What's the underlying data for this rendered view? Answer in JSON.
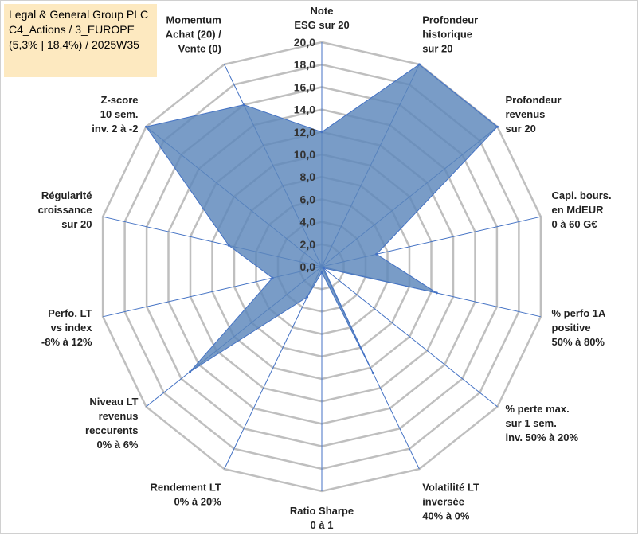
{
  "title_box": {
    "line1": "Legal & General Group PLC",
    "line2": "C4_Actions / 3_EUROPE",
    "line3": "(5,3% | 18,4%) / 2025W35",
    "background": "#fde9c0"
  },
  "chart_data": {
    "type": "radar",
    "rlim": [
      0,
      20
    ],
    "r_ticks": [
      "0,0",
      "2,0",
      "4,0",
      "6,0",
      "8,0",
      "10,0",
      "12,0",
      "14,0",
      "16,0",
      "18,0",
      "20,0"
    ],
    "grid": true,
    "fill_color": "#5b86bb",
    "line_color": "#4472c4",
    "grid_color": "#bfbfbf",
    "axes": [
      {
        "label": [
          "Note",
          "ESG sur 20"
        ],
        "value": 12.0
      },
      {
        "label": [
          "Profondeur",
          "historique",
          "sur 20"
        ],
        "value": 20.0
      },
      {
        "label": [
          "Profondeur",
          "revenus",
          "sur 20"
        ],
        "value": 20.0
      },
      {
        "label": [
          "Capi. bours.",
          "en MdEUR",
          "0 à 60 G€"
        ],
        "value": 5.0
      },
      {
        "label": [
          "% perfo 1A",
          "positive",
          "50% à 80%"
        ],
        "value": 10.5
      },
      {
        "label": [
          "% perte max.",
          "sur 1 sem.",
          "inv. 50% à 20%"
        ],
        "value": 0.2
      },
      {
        "label": [
          "Volatilité LT",
          "inversée",
          "40% à 0%"
        ],
        "value": 10.5
      },
      {
        "label": [
          "Ratio Sharpe",
          "0 à 1"
        ],
        "value": 0.5
      },
      {
        "label": [
          "Rendement LT",
          "0% à 20%"
        ],
        "value": 3.0
      },
      {
        "label": [
          "Niveau LT",
          "revenus",
          "reccurents",
          "0% à 6%"
        ],
        "value": 15.0
      },
      {
        "label": [
          "Perfo. LT",
          "vs index",
          "-8% à 12%"
        ],
        "value": 4.5
      },
      {
        "label": [
          "Régularité",
          "croissance",
          "sur 20"
        ],
        "value": 8.5
      },
      {
        "label": [
          "Z-score",
          "10 sem.",
          "inv. 2 à -2"
        ],
        "value": 20.0
      },
      {
        "label": [
          "Momentum",
          "Achat (20) /",
          "Vente (0)"
        ],
        "value": 16.0
      }
    ]
  }
}
